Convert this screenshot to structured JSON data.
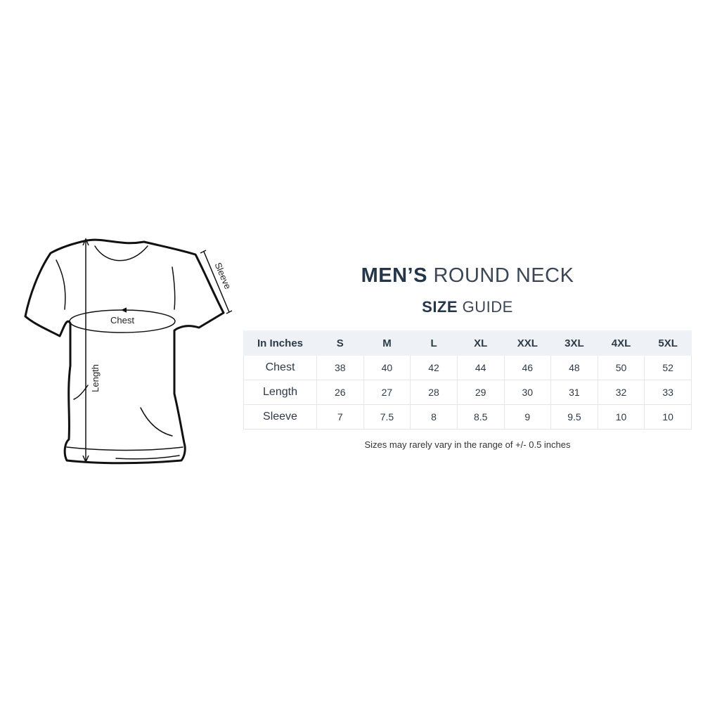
{
  "title": {
    "bold": "MEN’S",
    "light": "ROUND NECK"
  },
  "subtitle": {
    "bold": "SIZE",
    "light": "GUIDE"
  },
  "diagram_labels": {
    "chest": "Chest",
    "length": "Length",
    "sleeve": "Sleeve"
  },
  "table": {
    "header": [
      "In Inches",
      "S",
      "M",
      "L",
      "XL",
      "XXL",
      "3XL",
      "4XL",
      "5XL"
    ],
    "rows": [
      {
        "label": "Chest",
        "values": [
          "38",
          "40",
          "42",
          "44",
          "46",
          "48",
          "50",
          "52"
        ]
      },
      {
        "label": "Length",
        "values": [
          "26",
          "27",
          "28",
          "29",
          "30",
          "31",
          "32",
          "33"
        ]
      },
      {
        "label": "Sleeve",
        "values": [
          "7",
          "7.5",
          "8",
          "8.5",
          "9",
          "9.5",
          "10",
          "10"
        ]
      }
    ]
  },
  "note": "Sizes may rarely vary in the range of +/- 0.5 inches"
}
